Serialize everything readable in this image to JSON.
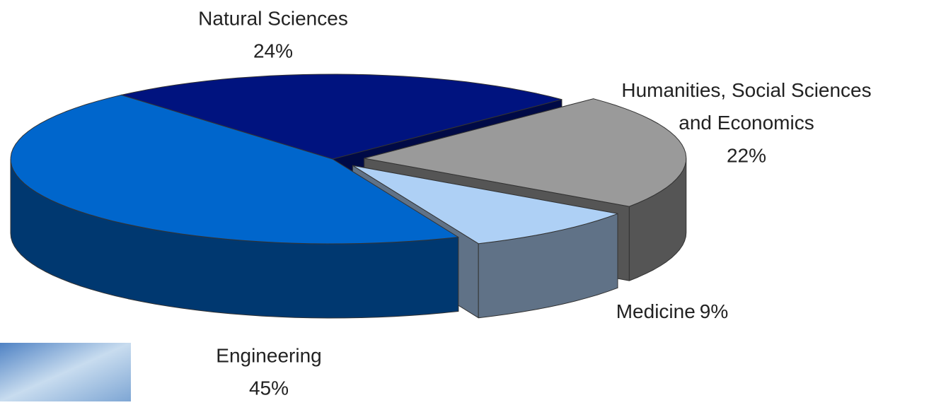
{
  "chart_data": {
    "type": "pie3d",
    "categories": [
      "Natural Sciences",
      "Humanities, Social Sciences and Economics",
      "Medicine",
      "Engineering"
    ],
    "values": [
      24,
      22,
      9,
      45
    ],
    "value_labels": [
      "24%",
      "22%",
      "9%",
      "45%"
    ],
    "colors": [
      "#00137f",
      "#9a9a9a",
      "#aed0f5",
      "#0066cc"
    ]
  }
}
